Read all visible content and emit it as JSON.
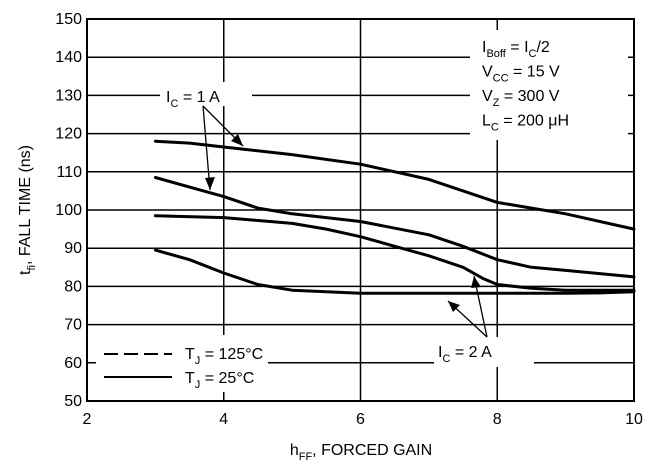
{
  "chart_data": {
    "type": "line",
    "xlabel": {
      "main": "h",
      "sub": "FF",
      "rest": ", FORCED GAIN"
    },
    "ylabel": {
      "main": "t",
      "sub": "fi",
      "rest": ", FALL TIME (ns)"
    },
    "xlim": [
      2,
      10
    ],
    "ylim": [
      50,
      150
    ],
    "x_ticks": [
      2,
      4,
      6,
      8,
      10
    ],
    "y_ticks": [
      50,
      60,
      70,
      80,
      90,
      100,
      110,
      120,
      130,
      140,
      150
    ],
    "grid": true,
    "series": [
      {
        "style": "solid",
        "points": [
          [
            3,
            118
          ],
          [
            3.5,
            117.5
          ],
          [
            4,
            116.5
          ],
          [
            5,
            114.5
          ],
          [
            6,
            112
          ],
          [
            7,
            108
          ],
          [
            8,
            102
          ],
          [
            9,
            99
          ],
          [
            10,
            95
          ]
        ]
      },
      {
        "style": "solid",
        "points": [
          [
            3,
            108.5
          ],
          [
            3.5,
            106
          ],
          [
            4,
            103.5
          ],
          [
            4.5,
            100.5
          ],
          [
            5,
            99
          ],
          [
            6,
            97
          ],
          [
            7,
            93.5
          ],
          [
            7.5,
            90.5
          ],
          [
            8,
            87
          ],
          [
            8.5,
            85
          ],
          [
            9,
            84.2
          ],
          [
            10,
            82.5
          ]
        ]
      },
      {
        "style": "solid",
        "points": [
          [
            3,
            98.5
          ],
          [
            4,
            98
          ],
          [
            5,
            96.5
          ],
          [
            5.5,
            95
          ],
          [
            6,
            93
          ],
          [
            6.5,
            90.5
          ],
          [
            7,
            88
          ],
          [
            7.5,
            85
          ],
          [
            7.8,
            82
          ],
          [
            8,
            80.5
          ],
          [
            8.5,
            79.5
          ],
          [
            9,
            79
          ],
          [
            10,
            79
          ]
        ]
      },
      {
        "style": "solid",
        "points": [
          [
            3,
            89.5
          ],
          [
            3.5,
            87
          ],
          [
            4,
            83.5
          ],
          [
            4.5,
            80.5
          ],
          [
            5,
            79
          ],
          [
            6,
            78.2
          ],
          [
            7,
            78.2
          ],
          [
            8,
            78.2
          ],
          [
            9,
            78.2
          ],
          [
            9.5,
            78.3
          ],
          [
            10,
            78.6
          ]
        ]
      }
    ],
    "legend": {
      "placement": "bottom-left",
      "entries": [
        {
          "style": "dashed",
          "label_main": "T",
          "label_sub": "J",
          "label_rest": " = 125°C"
        },
        {
          "style": "solid",
          "label_main": "T",
          "label_sub": "J",
          "label_rest": " = 25°C"
        }
      ]
    },
    "conditions": {
      "placement": "top-right",
      "lines": [
        [
          [
            "n",
            "I"
          ],
          [
            "s",
            "Boff"
          ],
          [
            "n",
            " = I"
          ],
          [
            "s",
            "C"
          ],
          [
            "n",
            "/2"
          ]
        ],
        [
          [
            "n",
            "V"
          ],
          [
            "s",
            "CC"
          ],
          [
            "n",
            " = 15 V"
          ]
        ],
        [
          [
            "n",
            "V"
          ],
          [
            "s",
            "Z"
          ],
          [
            "n",
            " = 300 V"
          ]
        ],
        [
          [
            "n",
            "L"
          ],
          [
            "s",
            "C"
          ],
          [
            "n",
            " = 200 μH"
          ]
        ]
      ]
    },
    "annotations": [
      {
        "main": "I",
        "sub": "C",
        "rest": " = 1 A"
      },
      {
        "main": "I",
        "sub": "C",
        "rest": " = 2 A"
      }
    ]
  }
}
